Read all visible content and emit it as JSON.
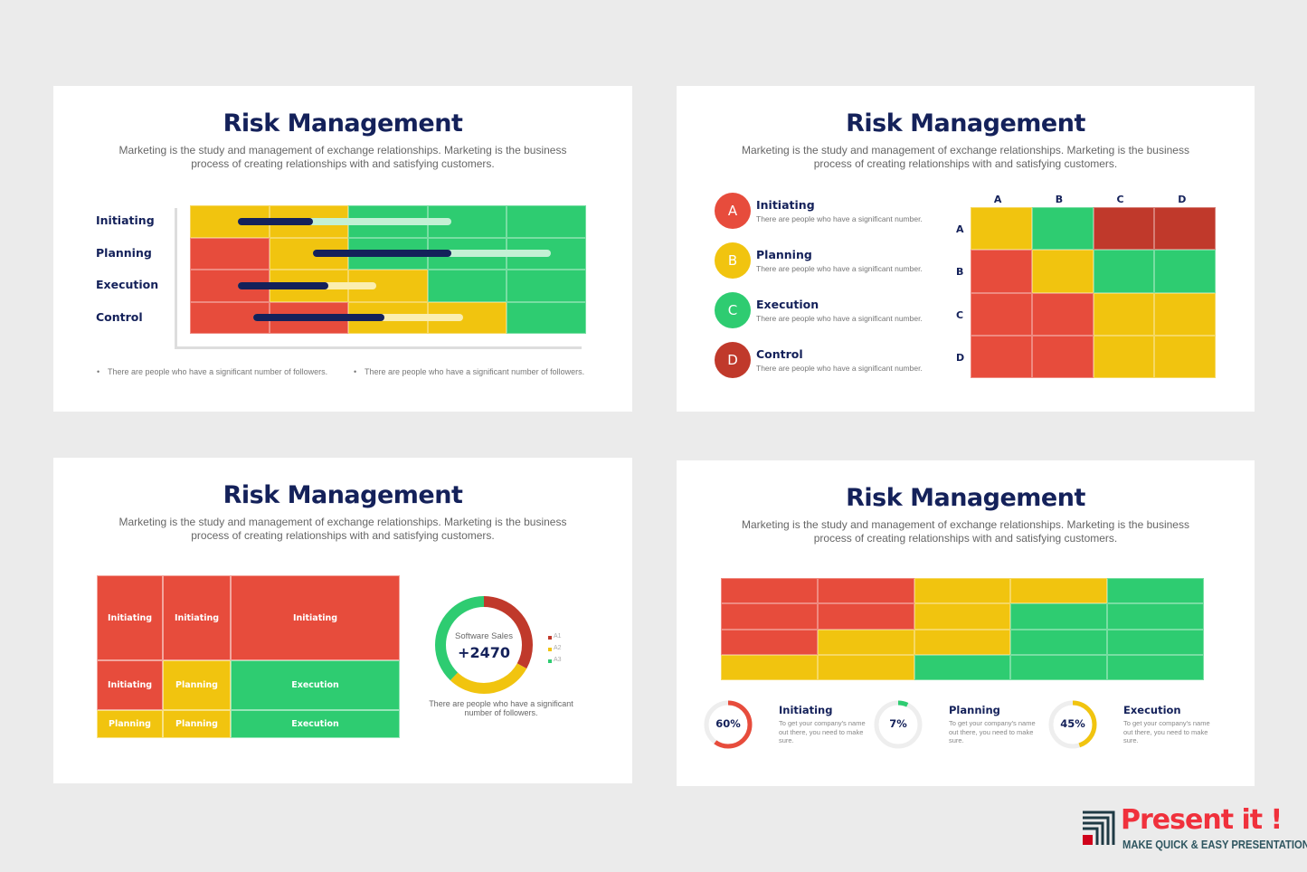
{
  "colors": {
    "red": "#e74c3c",
    "yellow": "#f1c40f",
    "green": "#2ecc71",
    "darkred": "#c0392b",
    "navy": "#14215a",
    "lightgreen": "#c3f0d4",
    "lightyellow": "#fbeeb0"
  },
  "slides": [
    {
      "title": "Risk Management",
      "subtitle": "Marketing is the study and management of exchange relationships. Marketing is the business process of creating relationships with and satisfying customers."
    },
    {
      "title": "Risk Management",
      "subtitle": "Marketing is the study and management of exchange relationships. Marketing is the business process of creating relationships with and satisfying customers."
    },
    {
      "title": "Risk Management",
      "subtitle": "Marketing is the study and management of exchange relationships. Marketing is the business process of creating relationships with and satisfying customers."
    },
    {
      "title": "Risk Management",
      "subtitle": "Marketing is the study and management of exchange relationships. Marketing is the business process of creating relationships with and satisfying customers."
    }
  ],
  "slide1": {
    "rows": [
      {
        "label": "Initiating",
        "cells": [
          "yellow",
          "yellow",
          "green",
          "green",
          "green"
        ],
        "bar": {
          "start": 0.6,
          "progress": 1.55,
          "end": 3.3,
          "track": "lightgreen"
        }
      },
      {
        "label": "Planning",
        "cells": [
          "red",
          "yellow",
          "green",
          "green",
          "green"
        ],
        "bar": {
          "start": 1.55,
          "progress": 3.3,
          "end": 4.55,
          "track": "lightgreen"
        }
      },
      {
        "label": "Execution",
        "cells": [
          "red",
          "yellow",
          "yellow",
          "green",
          "green"
        ],
        "bar": {
          "start": 0.6,
          "progress": 1.75,
          "end": 2.35,
          "track": "lightyellow"
        }
      },
      {
        "label": "Control",
        "cells": [
          "red",
          "red",
          "yellow",
          "yellow",
          "green"
        ],
        "bar": {
          "start": 0.8,
          "progress": 2.45,
          "end": 3.45,
          "track": "lightyellow"
        }
      }
    ],
    "notes": [
      "There are people who have a significant number of followers.",
      "There are people who have a significant number of followers."
    ]
  },
  "slide2": {
    "items": [
      {
        "letter": "A",
        "label": "Initiating",
        "desc": "There are people who have a significant number.",
        "color": "red"
      },
      {
        "letter": "B",
        "label": "Planning",
        "desc": "There are people who have a significant number.",
        "color": "yellow"
      },
      {
        "letter": "C",
        "label": "Execution",
        "desc": "There are people who have a significant number.",
        "color": "green"
      },
      {
        "letter": "D",
        "label": "Control",
        "desc": "There are people who have a significant number.",
        "color": "darkred"
      }
    ],
    "col_headers": [
      "A",
      "B",
      "C",
      "D"
    ],
    "row_headers": [
      "A",
      "B",
      "C",
      "D"
    ],
    "matrix": [
      [
        "yellow",
        "green",
        "darkred",
        "darkred"
      ],
      [
        "red",
        "yellow",
        "green",
        "green"
      ],
      [
        "red",
        "red",
        "yellow",
        "yellow"
      ],
      [
        "red",
        "red",
        "yellow",
        "yellow"
      ]
    ]
  },
  "slide3": {
    "treemap": [
      {
        "label": "Initiating",
        "color": "red"
      },
      {
        "label": "Initiating",
        "color": "red"
      },
      {
        "label": "Initiating",
        "color": "red"
      },
      {
        "label": "Initiating",
        "color": "red"
      },
      {
        "label": "Planning",
        "color": "yellow"
      },
      {
        "label": "Execution",
        "color": "green"
      },
      {
        "label": "Planning",
        "color": "yellow"
      },
      {
        "label": "Planning",
        "color": "yellow"
      },
      {
        "label": "Execution",
        "color": "green"
      }
    ],
    "donut": {
      "label": "Software Sales",
      "value": "+2470",
      "segments": [
        {
          "name": "A1",
          "value": 33,
          "color": "darkred"
        },
        {
          "name": "A2",
          "value": 29,
          "color": "yellow"
        },
        {
          "name": "A3",
          "value": 38,
          "color": "green"
        }
      ]
    },
    "caption": "There are people who have a significant number of followers."
  },
  "slide4": {
    "grid": [
      [
        "red",
        "red",
        "yellow",
        "yellow",
        "green"
      ],
      [
        "red",
        "red",
        "yellow",
        "green",
        "green"
      ],
      [
        "red",
        "yellow",
        "yellow",
        "green",
        "green"
      ],
      [
        "yellow",
        "yellow",
        "green",
        "green",
        "green"
      ]
    ],
    "progress": [
      {
        "label": "Initiating",
        "percent": 60,
        "text": "60%",
        "desc": "To get your company's name out there, you need to make sure.",
        "color": "red"
      },
      {
        "label": "Planning",
        "percent": 7,
        "text": "7%",
        "desc": "To get your company's name out there, you need to make sure.",
        "color": "green"
      },
      {
        "label": "Execution",
        "percent": 45,
        "text": "45%",
        "desc": "To get your company's name out there, you need to make sure.",
        "color": "yellow"
      }
    ]
  },
  "brand": {
    "name": "Present it !",
    "tagline": "MAKE QUICK & EASY PRESENTATIONS"
  }
}
